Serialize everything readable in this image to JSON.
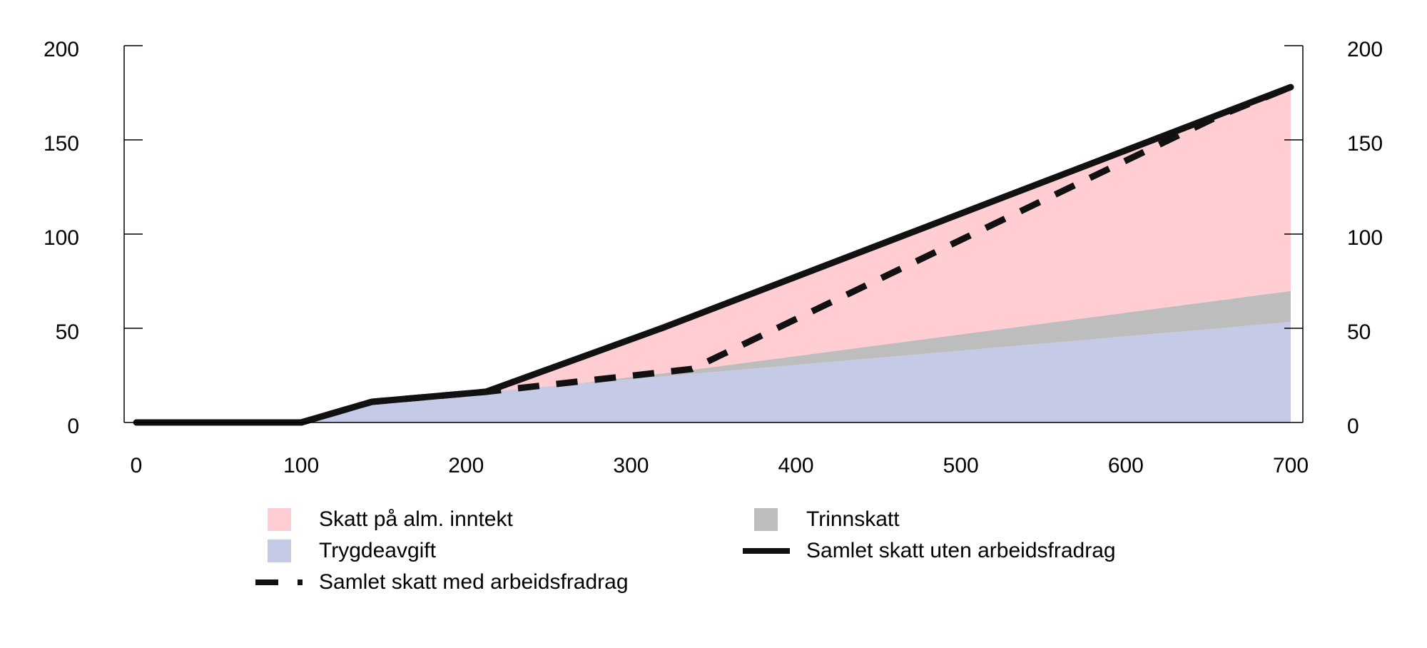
{
  "chart_data": {
    "type": "area",
    "title": "",
    "xlabel": "",
    "ylabel": "",
    "xlim": [
      0,
      700
    ],
    "ylim": [
      0,
      200
    ],
    "x_ticks": [
      0,
      100,
      200,
      300,
      400,
      500,
      600,
      700
    ],
    "y_ticks_left": [
      0,
      50,
      100,
      150,
      200
    ],
    "y_ticks_right": [
      0,
      50,
      100,
      150,
      200
    ],
    "grid": false,
    "legend_position": "bottom",
    "stacked_areas": [
      {
        "name": "Trygdeavgift",
        "color": "#C5CAE6",
        "points": [
          [
            0,
            0
          ],
          [
            100,
            0
          ],
          [
            143,
            11
          ],
          [
            212,
            16.3
          ],
          [
            700,
            53.3
          ]
        ]
      },
      {
        "name": "Trinnskatt",
        "color": "#BDBDBD",
        "points": [
          [
            0,
            0
          ],
          [
            263,
            0
          ],
          [
            337,
            2.2
          ],
          [
            700,
            16.5
          ]
        ]
      },
      {
        "name": "Skatt på alm. inntekt",
        "color": "#FFCDD2",
        "points": [
          [
            0,
            0
          ],
          [
            212,
            0
          ],
          [
            320,
            26.5
          ],
          [
            700,
            108.2
          ]
        ]
      }
    ],
    "lines": [
      {
        "name": "Samlet skatt uten arbeidsfradrag",
        "style": "solid",
        "color": "#111111",
        "points": [
          [
            0,
            0
          ],
          [
            100,
            0
          ],
          [
            143,
            11
          ],
          [
            212,
            16.3
          ],
          [
            320,
            50.5
          ],
          [
            700,
            178
          ]
        ]
      },
      {
        "name": "Samlet skatt med arbeidsfradrag",
        "style": "dashed",
        "color": "#111111",
        "points": [
          [
            0,
            0
          ],
          [
            100,
            0
          ],
          [
            143,
            11
          ],
          [
            212,
            16.3
          ],
          [
            337,
            28.4
          ],
          [
            656,
            162.5
          ],
          [
            700,
            178
          ]
        ]
      }
    ]
  },
  "legend": {
    "items": [
      {
        "label": "Skatt på alm. inntekt",
        "kind": "swatch",
        "color": "#FFCDD2"
      },
      {
        "label": "Trinnskatt",
        "kind": "swatch",
        "color": "#BDBDBD"
      },
      {
        "label": "Trygdeavgift",
        "kind": "swatch",
        "color": "#C5CAE6"
      },
      {
        "label": "Samlet skatt uten arbeidsfradrag",
        "kind": "solid-line",
        "color": "#111111"
      },
      {
        "label": "Samlet skatt med arbeidsfradrag",
        "kind": "dashed-line",
        "color": "#111111"
      }
    ]
  }
}
